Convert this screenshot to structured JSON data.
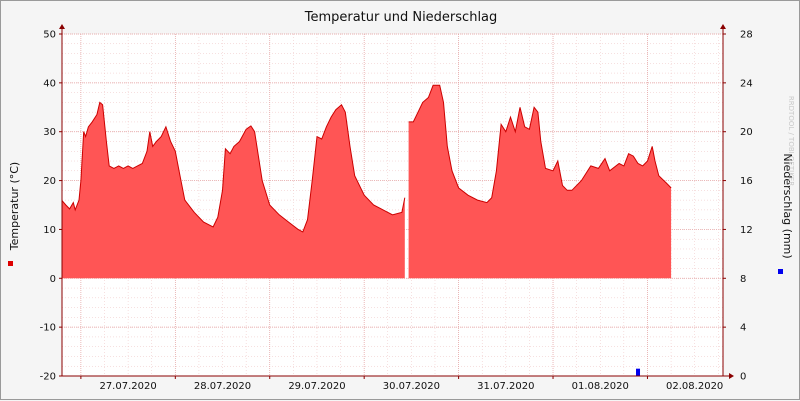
{
  "chart_data": {
    "type": "area",
    "title": "Temperatur und Niederschlag",
    "ylabel": "Temperatur (°C)",
    "y2label": "Niederschlag (mm)",
    "watermark": "RRDTOOL / TOBI OETIKER",
    "ylim": [
      -20,
      50
    ],
    "y2lim": [
      0,
      28
    ],
    "yticks": [
      "50",
      "40",
      "30",
      "20",
      "10",
      "0",
      "-10",
      "-20"
    ],
    "y2ticks": [
      "28",
      "24",
      "20",
      "16",
      "12",
      "8",
      "4",
      "0"
    ],
    "x_tick_labels": [
      "27.07.2020",
      "28.07.2020",
      "29.07.2020",
      "30.07.2020",
      "31.07.2020",
      "01.08.2020",
      "02.08.2020"
    ],
    "x_range_days": [
      26.8,
      33.8
    ],
    "grid": true,
    "colors": {
      "temperature": "#ff5555",
      "temperature_line": "#cc0000",
      "precipitation": "#0000ee",
      "grid_minor": "#eec0c0",
      "axis": "#8a0000"
    },
    "series": [
      {
        "name": "Temperatur",
        "axis": "left",
        "points": [
          [
            26.8,
            15.9
          ],
          [
            26.84,
            15.0
          ],
          [
            26.88,
            14.2
          ],
          [
            26.92,
            15.5
          ],
          [
            26.94,
            14.0
          ],
          [
            26.98,
            16.0
          ],
          [
            27.0,
            20.0
          ],
          [
            27.03,
            30.0
          ],
          [
            27.05,
            29.0
          ],
          [
            27.08,
            31.0
          ],
          [
            27.12,
            32.0
          ],
          [
            27.17,
            33.5
          ],
          [
            27.2,
            36.0
          ],
          [
            27.23,
            35.5
          ],
          [
            27.27,
            28.0
          ],
          [
            27.3,
            23.0
          ],
          [
            27.35,
            22.5
          ],
          [
            27.4,
            23.0
          ],
          [
            27.45,
            22.5
          ],
          [
            27.5,
            23.0
          ],
          [
            27.55,
            22.5
          ],
          [
            27.6,
            23.0
          ],
          [
            27.65,
            23.5
          ],
          [
            27.7,
            26.0
          ],
          [
            27.73,
            30.0
          ],
          [
            27.76,
            27.0
          ],
          [
            27.8,
            28.0
          ],
          [
            27.85,
            29.0
          ],
          [
            27.9,
            31.0
          ],
          [
            27.95,
            28.0
          ],
          [
            28.0,
            26.0
          ],
          [
            28.05,
            21.0
          ],
          [
            28.1,
            16.0
          ],
          [
            28.2,
            13.5
          ],
          [
            28.3,
            11.5
          ],
          [
            28.4,
            10.5
          ],
          [
            28.45,
            12.5
          ],
          [
            28.5,
            18.0
          ],
          [
            28.53,
            26.5
          ],
          [
            28.58,
            25.5
          ],
          [
            28.62,
            27.0
          ],
          [
            28.68,
            28.0
          ],
          [
            28.75,
            30.5
          ],
          [
            28.8,
            31.2
          ],
          [
            28.84,
            30.0
          ],
          [
            28.88,
            25.0
          ],
          [
            28.92,
            20.0
          ],
          [
            29.0,
            15.0
          ],
          [
            29.1,
            13.0
          ],
          [
            29.2,
            11.5
          ],
          [
            29.3,
            10.0
          ],
          [
            29.35,
            9.5
          ],
          [
            29.4,
            12.0
          ],
          [
            29.45,
            20.0
          ],
          [
            29.5,
            29.0
          ],
          [
            29.55,
            28.5
          ],
          [
            29.6,
            31.0
          ],
          [
            29.65,
            33.0
          ],
          [
            29.7,
            34.5
          ],
          [
            29.76,
            35.5
          ],
          [
            29.8,
            34.0
          ],
          [
            29.85,
            27.0
          ],
          [
            29.9,
            21.0
          ],
          [
            30.0,
            17.0
          ],
          [
            30.1,
            15.0
          ],
          [
            30.2,
            14.0
          ],
          [
            30.3,
            13.0
          ],
          [
            30.4,
            13.5
          ],
          [
            30.43,
            16.5
          ]
        ]
      },
      {
        "name": "Temperatur",
        "axis": "left",
        "points": [
          [
            30.47,
            32.0
          ],
          [
            30.52,
            32.0
          ],
          [
            30.57,
            34.0
          ],
          [
            30.62,
            36.0
          ],
          [
            30.68,
            37.0
          ],
          [
            30.73,
            39.5
          ],
          [
            30.8,
            39.5
          ],
          [
            30.84,
            36.0
          ],
          [
            30.88,
            27.0
          ],
          [
            30.93,
            22.0
          ],
          [
            31.0,
            18.5
          ],
          [
            31.1,
            17.0
          ],
          [
            31.2,
            16.0
          ],
          [
            31.3,
            15.5
          ],
          [
            31.35,
            16.5
          ],
          [
            31.4,
            22.0
          ],
          [
            31.45,
            31.5
          ],
          [
            31.5,
            30.0
          ],
          [
            31.55,
            33.0
          ],
          [
            31.6,
            30.0
          ],
          [
            31.65,
            35.0
          ],
          [
            31.7,
            31.0
          ],
          [
            31.75,
            30.5
          ],
          [
            31.8,
            35.0
          ],
          [
            31.84,
            34.0
          ],
          [
            31.87,
            28.0
          ],
          [
            31.92,
            22.5
          ],
          [
            32.0,
            22.0
          ],
          [
            32.05,
            24.0
          ],
          [
            32.1,
            19.0
          ],
          [
            32.15,
            18.0
          ],
          [
            32.2,
            18.0
          ],
          [
            32.3,
            20.0
          ],
          [
            32.4,
            23.0
          ],
          [
            32.48,
            22.5
          ],
          [
            32.55,
            24.5
          ],
          [
            32.6,
            22.0
          ],
          [
            32.7,
            23.5
          ],
          [
            32.75,
            23.0
          ],
          [
            32.8,
            25.5
          ],
          [
            32.85,
            25.0
          ],
          [
            32.9,
            23.5
          ],
          [
            32.95,
            23.0
          ],
          [
            33.0,
            24.0
          ],
          [
            33.05,
            27.0
          ],
          [
            33.08,
            24.0
          ],
          [
            33.12,
            21.0
          ],
          [
            33.2,
            19.5
          ],
          [
            33.25,
            18.5
          ]
        ]
      },
      {
        "name": "Niederschlag",
        "axis": "right",
        "type": "bar",
        "points": [
          [
            32.9,
            0.6
          ]
        ]
      }
    ]
  }
}
